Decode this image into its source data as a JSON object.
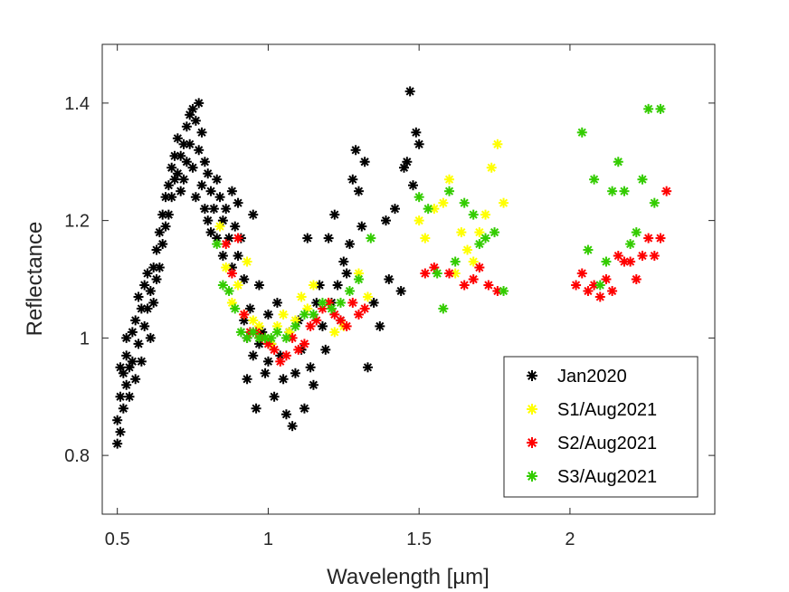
{
  "chart_data": {
    "type": "scatter",
    "xlabel": "Wavelength [µm]",
    "ylabel": "Reflectance",
    "xlim": [
      0.45,
      2.48
    ],
    "ylim": [
      0.7,
      1.5
    ],
    "xticks": [
      0.5,
      1,
      1.5,
      2
    ],
    "xtick_labels": [
      "0.5",
      "1",
      "1.5",
      "2"
    ],
    "yticks": [
      0.8,
      1,
      1.2,
      1.4
    ],
    "ytick_labels": [
      "0.8",
      "1",
      "1.2",
      "1.4"
    ],
    "grid": false,
    "legend_position": "bottom-right",
    "marker": "asterisk",
    "series": [
      {
        "name": "Jan2020",
        "color": "#000000",
        "points": [
          [
            0.5,
            0.82
          ],
          [
            0.5,
            0.86
          ],
          [
            0.51,
            0.9
          ],
          [
            0.51,
            0.95
          ],
          [
            0.51,
            0.84
          ],
          [
            0.52,
            0.94
          ],
          [
            0.52,
            0.88
          ],
          [
            0.53,
            0.92
          ],
          [
            0.53,
            0.97
          ],
          [
            0.53,
            1.0
          ],
          [
            0.54,
            0.95
          ],
          [
            0.54,
            0.9
          ],
          [
            0.55,
            1.01
          ],
          [
            0.55,
            0.96
          ],
          [
            0.56,
            1.03
          ],
          [
            0.56,
            0.93
          ],
          [
            0.57,
            1.07
          ],
          [
            0.57,
            0.99
          ],
          [
            0.58,
            1.05
          ],
          [
            0.58,
            0.96
          ],
          [
            0.59,
            1.09
          ],
          [
            0.59,
            1.02
          ],
          [
            0.6,
            1.11
          ],
          [
            0.6,
            1.05
          ],
          [
            0.61,
            1.08
          ],
          [
            0.61,
            1.0
          ],
          [
            0.62,
            1.12
          ],
          [
            0.62,
            1.06
          ],
          [
            0.63,
            1.15
          ],
          [
            0.63,
            1.1
          ],
          [
            0.64,
            1.18
          ],
          [
            0.64,
            1.12
          ],
          [
            0.65,
            1.21
          ],
          [
            0.65,
            1.16
          ],
          [
            0.66,
            1.24
          ],
          [
            0.66,
            1.19
          ],
          [
            0.67,
            1.26
          ],
          [
            0.67,
            1.21
          ],
          [
            0.68,
            1.29
          ],
          [
            0.68,
            1.24
          ],
          [
            0.69,
            1.31
          ],
          [
            0.69,
            1.27
          ],
          [
            0.7,
            1.34
          ],
          [
            0.7,
            1.28
          ],
          [
            0.71,
            1.31
          ],
          [
            0.71,
            1.25
          ],
          [
            0.72,
            1.33
          ],
          [
            0.72,
            1.27
          ],
          [
            0.73,
            1.36
          ],
          [
            0.73,
            1.3
          ],
          [
            0.74,
            1.38
          ],
          [
            0.74,
            1.33
          ],
          [
            0.75,
            1.39
          ],
          [
            0.75,
            1.29
          ],
          [
            0.76,
            1.37
          ],
          [
            0.76,
            1.24
          ],
          [
            0.77,
            1.4
          ],
          [
            0.77,
            1.32
          ],
          [
            0.78,
            1.35
          ],
          [
            0.78,
            1.26
          ],
          [
            0.79,
            1.3
          ],
          [
            0.79,
            1.22
          ],
          [
            0.8,
            1.28
          ],
          [
            0.8,
            1.2
          ],
          [
            0.81,
            1.25
          ],
          [
            0.81,
            1.18
          ],
          [
            0.82,
            1.22
          ],
          [
            0.83,
            1.27
          ],
          [
            0.83,
            1.17
          ],
          [
            0.84,
            1.24
          ],
          [
            0.85,
            1.2
          ],
          [
            0.85,
            1.14
          ],
          [
            0.86,
            1.22
          ],
          [
            0.87,
            1.17
          ],
          [
            0.88,
            1.25
          ],
          [
            0.88,
            1.12
          ],
          [
            0.89,
            1.19
          ],
          [
            0.9,
            1.23
          ],
          [
            0.9,
            1.14
          ],
          [
            0.91,
            1.17
          ],
          [
            0.92,
            1.1
          ],
          [
            0.92,
            1.03
          ],
          [
            0.93,
            1.0
          ],
          [
            0.93,
            0.93
          ],
          [
            0.94,
            1.05
          ],
          [
            0.95,
            1.21
          ],
          [
            0.95,
            0.97
          ],
          [
            0.96,
            0.88
          ],
          [
            0.97,
            1.09
          ],
          [
            0.97,
            0.99
          ],
          [
            0.98,
            1.01
          ],
          [
            0.99,
            0.94
          ],
          [
            1.0,
            1.04
          ],
          [
            1.0,
            0.96
          ],
          [
            1.01,
            0.99
          ],
          [
            1.02,
            0.9
          ],
          [
            1.03,
            1.06
          ],
          [
            1.04,
            0.97
          ],
          [
            1.05,
            0.93
          ],
          [
            1.06,
            0.87
          ],
          [
            1.07,
            1.01
          ],
          [
            1.08,
            0.85
          ],
          [
            1.09,
            0.94
          ],
          [
            1.1,
            1.03
          ],
          [
            1.11,
            0.98
          ],
          [
            1.12,
            0.88
          ],
          [
            1.13,
            1.17
          ],
          [
            1.14,
            0.95
          ],
          [
            1.15,
            0.92
          ],
          [
            1.16,
            1.06
          ],
          [
            1.17,
            1.09
          ],
          [
            1.18,
            1.02
          ],
          [
            1.19,
            0.98
          ],
          [
            1.2,
            1.17
          ],
          [
            1.21,
            1.06
          ],
          [
            1.22,
            1.21
          ],
          [
            1.23,
            1.09
          ],
          [
            1.24,
            1.03
          ],
          [
            1.25,
            1.13
          ],
          [
            1.26,
            1.11
          ],
          [
            1.27,
            1.16
          ],
          [
            1.28,
            1.27
          ],
          [
            1.29,
            1.32
          ],
          [
            1.3,
            1.25
          ],
          [
            1.31,
            1.19
          ],
          [
            1.32,
            1.3
          ],
          [
            1.33,
            0.95
          ],
          [
            1.35,
            1.06
          ],
          [
            1.37,
            1.02
          ],
          [
            1.39,
            1.2
          ],
          [
            1.4,
            1.1
          ],
          [
            1.42,
            1.22
          ],
          [
            1.44,
            1.08
          ],
          [
            1.45,
            1.29
          ],
          [
            1.46,
            1.3
          ],
          [
            1.47,
            1.42
          ],
          [
            1.48,
            1.26
          ],
          [
            1.49,
            1.35
          ],
          [
            1.5,
            1.33
          ]
        ]
      },
      {
        "name": "S1/Aug2021",
        "color": "#ffff00",
        "points": [
          [
            0.84,
            1.19
          ],
          [
            0.86,
            1.12
          ],
          [
            0.88,
            1.06
          ],
          [
            0.9,
            1.09
          ],
          [
            0.92,
            1.04
          ],
          [
            0.93,
            1.13
          ],
          [
            0.95,
            1.03
          ],
          [
            0.97,
            1.02
          ],
          [
            0.99,
            1.0
          ],
          [
            1.01,
            0.99
          ],
          [
            1.03,
            1.02
          ],
          [
            1.05,
            1.04
          ],
          [
            1.07,
            1.01
          ],
          [
            1.09,
            1.03
          ],
          [
            1.11,
            1.07
          ],
          [
            1.13,
            1.05
          ],
          [
            1.15,
            1.09
          ],
          [
            1.2,
            1.06
          ],
          [
            1.22,
            1.01
          ],
          [
            1.25,
            1.02
          ],
          [
            1.3,
            1.11
          ],
          [
            1.33,
            1.07
          ],
          [
            1.5,
            1.2
          ],
          [
            1.52,
            1.17
          ],
          [
            1.55,
            1.22
          ],
          [
            1.58,
            1.23
          ],
          [
            1.6,
            1.27
          ],
          [
            1.62,
            1.11
          ],
          [
            1.64,
            1.18
          ],
          [
            1.66,
            1.15
          ],
          [
            1.68,
            1.13
          ],
          [
            1.7,
            1.18
          ],
          [
            1.72,
            1.21
          ],
          [
            1.74,
            1.29
          ],
          [
            1.76,
            1.33
          ],
          [
            1.78,
            1.23
          ]
        ]
      },
      {
        "name": "S2/Aug2021",
        "color": "#ff0000",
        "points": [
          [
            0.86,
            1.16
          ],
          [
            0.88,
            1.11
          ],
          [
            0.9,
            1.17
          ],
          [
            0.92,
            1.04
          ],
          [
            0.94,
            1.01
          ],
          [
            0.96,
            1.01
          ],
          [
            0.98,
            1.0
          ],
          [
            1.0,
            0.99
          ],
          [
            1.02,
            0.98
          ],
          [
            1.04,
            0.96
          ],
          [
            1.06,
            0.97
          ],
          [
            1.08,
            1.0
          ],
          [
            1.1,
            0.98
          ],
          [
            1.12,
            0.99
          ],
          [
            1.14,
            1.02
          ],
          [
            1.16,
            1.03
          ],
          [
            1.18,
            1.05
          ],
          [
            1.2,
            1.06
          ],
          [
            1.22,
            1.04
          ],
          [
            1.24,
            1.03
          ],
          [
            1.26,
            1.02
          ],
          [
            1.28,
            1.06
          ],
          [
            1.3,
            1.04
          ],
          [
            1.32,
            1.05
          ],
          [
            1.52,
            1.11
          ],
          [
            1.55,
            1.12
          ],
          [
            1.6,
            1.11
          ],
          [
            1.65,
            1.09
          ],
          [
            1.68,
            1.1
          ],
          [
            1.7,
            1.12
          ],
          [
            1.73,
            1.09
          ],
          [
            1.76,
            1.08
          ],
          [
            2.02,
            1.09
          ],
          [
            2.04,
            1.11
          ],
          [
            2.06,
            1.08
          ],
          [
            2.08,
            1.09
          ],
          [
            2.1,
            1.07
          ],
          [
            2.12,
            1.1
          ],
          [
            2.14,
            1.08
          ],
          [
            2.16,
            1.14
          ],
          [
            2.18,
            1.13
          ],
          [
            2.2,
            1.13
          ],
          [
            2.22,
            1.1
          ],
          [
            2.24,
            1.14
          ],
          [
            2.26,
            1.17
          ],
          [
            2.28,
            1.14
          ],
          [
            2.3,
            1.17
          ],
          [
            2.32,
            1.25
          ]
        ]
      },
      {
        "name": "S3/Aug2021",
        "color": "#33cc00",
        "points": [
          [
            0.83,
            1.16
          ],
          [
            0.85,
            1.09
          ],
          [
            0.87,
            1.08
          ],
          [
            0.89,
            1.05
          ],
          [
            0.91,
            1.01
          ],
          [
            0.93,
            1.0
          ],
          [
            0.95,
            1.01
          ],
          [
            0.97,
            1.0
          ],
          [
            0.99,
            1.0
          ],
          [
            1.01,
            1.0
          ],
          [
            1.03,
            1.01
          ],
          [
            1.06,
            1.0
          ],
          [
            1.09,
            1.02
          ],
          [
            1.12,
            1.04
          ],
          [
            1.15,
            1.04
          ],
          [
            1.18,
            1.06
          ],
          [
            1.21,
            1.05
          ],
          [
            1.24,
            1.06
          ],
          [
            1.27,
            1.08
          ],
          [
            1.3,
            1.1
          ],
          [
            1.34,
            1.17
          ],
          [
            1.5,
            1.24
          ],
          [
            1.53,
            1.22
          ],
          [
            1.56,
            1.11
          ],
          [
            1.58,
            1.05
          ],
          [
            1.6,
            1.25
          ],
          [
            1.62,
            1.13
          ],
          [
            1.65,
            1.23
          ],
          [
            1.68,
            1.21
          ],
          [
            1.7,
            1.16
          ],
          [
            1.72,
            1.17
          ],
          [
            1.75,
            1.18
          ],
          [
            1.78,
            1.08
          ],
          [
            2.04,
            1.35
          ],
          [
            2.06,
            1.15
          ],
          [
            2.08,
            1.27
          ],
          [
            2.1,
            1.09
          ],
          [
            2.12,
            1.13
          ],
          [
            2.14,
            1.25
          ],
          [
            2.16,
            1.3
          ],
          [
            2.18,
            1.25
          ],
          [
            2.2,
            1.16
          ],
          [
            2.22,
            1.18
          ],
          [
            2.24,
            1.27
          ],
          [
            2.26,
            1.39
          ],
          [
            2.28,
            1.23
          ],
          [
            2.3,
            1.39
          ]
        ]
      }
    ]
  }
}
